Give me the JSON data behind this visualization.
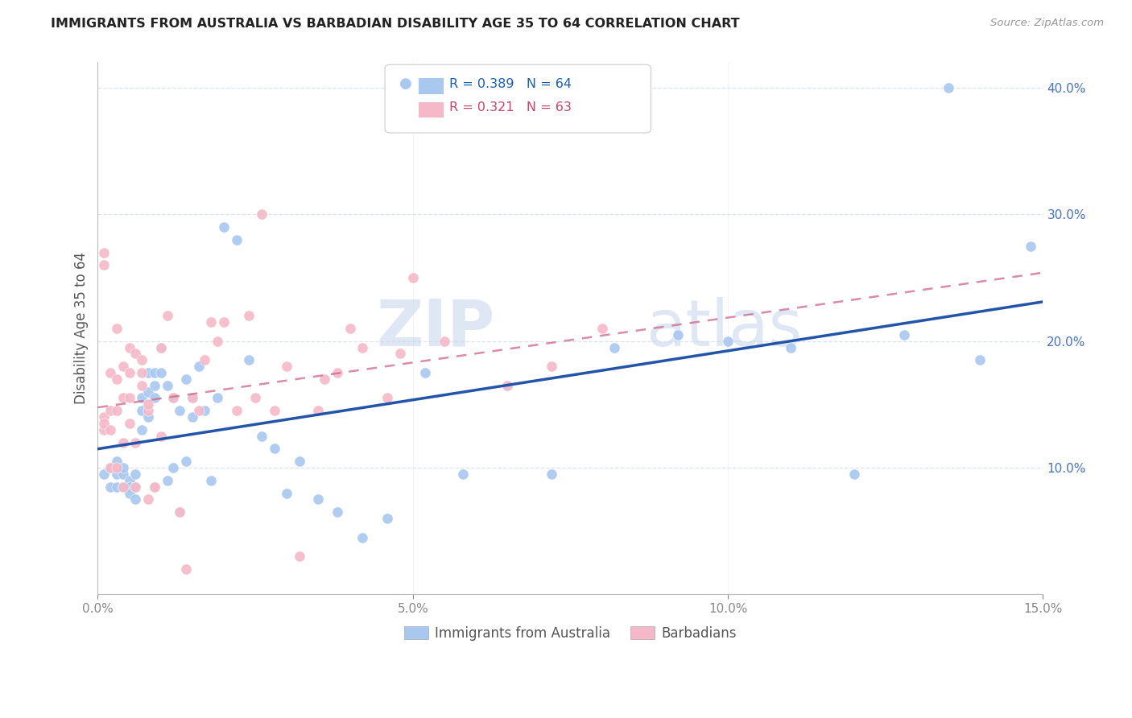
{
  "title": "IMMIGRANTS FROM AUSTRALIA VS BARBADIAN DISABILITY AGE 35 TO 64 CORRELATION CHART",
  "source": "Source: ZipAtlas.com",
  "ylabel": "Disability Age 35 to 64",
  "xmin": 0.0,
  "xmax": 0.15,
  "ymin": 0.0,
  "ymax": 0.42,
  "xticks": [
    0.0,
    0.05,
    0.1,
    0.15
  ],
  "xtick_labels": [
    "0.0%",
    "5.0%",
    "10.0%",
    "15.0%"
  ],
  "yticks": [
    0.0,
    0.1,
    0.2,
    0.3,
    0.4
  ],
  "ytick_labels": [
    "",
    "10.0%",
    "20.0%",
    "30.0%",
    "40.0%"
  ],
  "legend1_label": "Immigrants from Australia",
  "legend2_label": "Barbadians",
  "r1": "0.389",
  "n1": "64",
  "r2": "0.321",
  "n2": "63",
  "color_blue": "#a8c8f0",
  "color_pink": "#f5b8c8",
  "line_blue": "#2255aa",
  "line_pink": "#cc6688",
  "scatter_blue_x": [
    0.001,
    0.002,
    0.002,
    0.003,
    0.003,
    0.003,
    0.004,
    0.004,
    0.004,
    0.005,
    0.005,
    0.005,
    0.006,
    0.006,
    0.006,
    0.007,
    0.007,
    0.007,
    0.008,
    0.008,
    0.008,
    0.009,
    0.009,
    0.009,
    0.01,
    0.01,
    0.011,
    0.011,
    0.012,
    0.012,
    0.013,
    0.013,
    0.014,
    0.014,
    0.015,
    0.015,
    0.016,
    0.017,
    0.018,
    0.019,
    0.02,
    0.022,
    0.024,
    0.026,
    0.028,
    0.03,
    0.032,
    0.035,
    0.038,
    0.042,
    0.046,
    0.052,
    0.058,
    0.065,
    0.072,
    0.082,
    0.092,
    0.1,
    0.11,
    0.12,
    0.128,
    0.135,
    0.14,
    0.148
  ],
  "scatter_blue_y": [
    0.095,
    0.1,
    0.085,
    0.095,
    0.085,
    0.105,
    0.095,
    0.1,
    0.085,
    0.09,
    0.085,
    0.08,
    0.095,
    0.085,
    0.075,
    0.13,
    0.155,
    0.145,
    0.16,
    0.175,
    0.14,
    0.155,
    0.175,
    0.165,
    0.175,
    0.195,
    0.165,
    0.09,
    0.1,
    0.155,
    0.145,
    0.065,
    0.17,
    0.105,
    0.155,
    0.14,
    0.18,
    0.145,
    0.09,
    0.155,
    0.29,
    0.28,
    0.185,
    0.125,
    0.115,
    0.08,
    0.105,
    0.075,
    0.065,
    0.045,
    0.06,
    0.175,
    0.095,
    0.165,
    0.095,
    0.195,
    0.205,
    0.2,
    0.195,
    0.095,
    0.205,
    0.4,
    0.185,
    0.275
  ],
  "scatter_pink_x": [
    0.001,
    0.001,
    0.001,
    0.001,
    0.001,
    0.002,
    0.002,
    0.002,
    0.002,
    0.003,
    0.003,
    0.003,
    0.003,
    0.004,
    0.004,
    0.004,
    0.004,
    0.005,
    0.005,
    0.005,
    0.005,
    0.006,
    0.006,
    0.006,
    0.007,
    0.007,
    0.007,
    0.008,
    0.008,
    0.008,
    0.009,
    0.009,
    0.01,
    0.01,
    0.011,
    0.012,
    0.013,
    0.014,
    0.015,
    0.016,
    0.017,
    0.018,
    0.019,
    0.02,
    0.022,
    0.024,
    0.026,
    0.028,
    0.032,
    0.036,
    0.04,
    0.046,
    0.055,
    0.065,
    0.072,
    0.08,
    0.048,
    0.05,
    0.025,
    0.03,
    0.035,
    0.038,
    0.042
  ],
  "scatter_pink_y": [
    0.13,
    0.14,
    0.27,
    0.135,
    0.26,
    0.145,
    0.175,
    0.1,
    0.13,
    0.145,
    0.1,
    0.21,
    0.17,
    0.155,
    0.12,
    0.085,
    0.18,
    0.195,
    0.135,
    0.175,
    0.155,
    0.085,
    0.12,
    0.19,
    0.165,
    0.185,
    0.175,
    0.145,
    0.15,
    0.075,
    0.085,
    0.085,
    0.125,
    0.195,
    0.22,
    0.155,
    0.065,
    0.02,
    0.155,
    0.145,
    0.185,
    0.215,
    0.2,
    0.215,
    0.145,
    0.22,
    0.3,
    0.145,
    0.03,
    0.17,
    0.21,
    0.155,
    0.2,
    0.165,
    0.18,
    0.21,
    0.19,
    0.25,
    0.155,
    0.18,
    0.145,
    0.175,
    0.195
  ],
  "watermark_zip": "ZIP",
  "watermark_atlas": "atlas",
  "background_color": "#ffffff",
  "grid_color": "#dde3ee"
}
